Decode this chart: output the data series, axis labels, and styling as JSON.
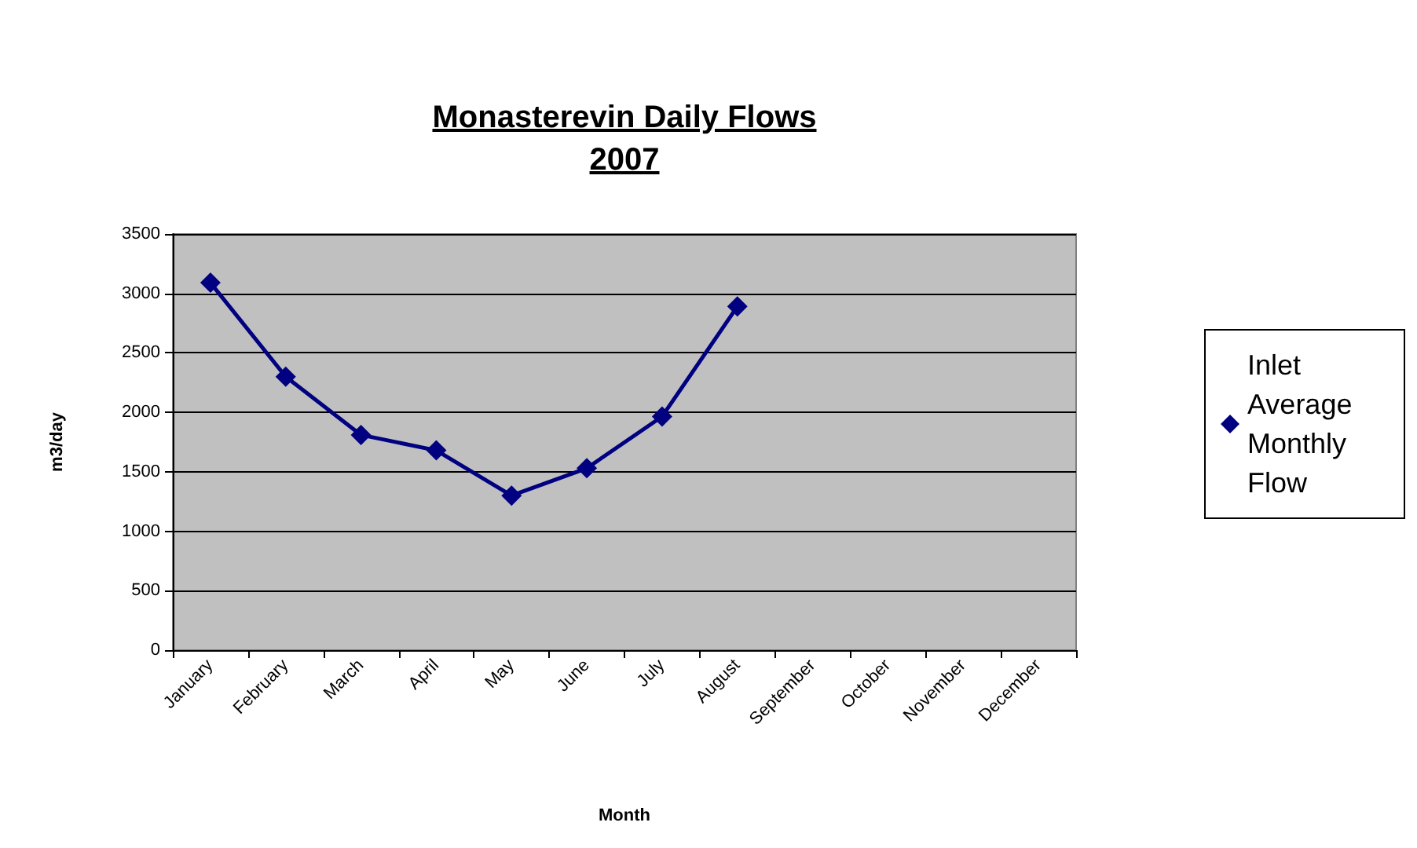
{
  "chart_data": {
    "type": "line",
    "title": "Monasterevin Daily Flows\n2007",
    "xlabel": "Month",
    "ylabel": "m3/day",
    "categories": [
      "January",
      "February",
      "March",
      "April",
      "May",
      "June",
      "July",
      "August",
      "September",
      "October",
      "November",
      "December"
    ],
    "series": [
      {
        "name": "Inlet Average Monthly Flow",
        "color": "#000080",
        "values": [
          3090,
          2300,
          1810,
          1680,
          1300,
          1530,
          1965,
          2890,
          null,
          null,
          null,
          null
        ]
      }
    ],
    "ylim": [
      0,
      3500
    ],
    "yticks": [
      0,
      500,
      1000,
      1500,
      2000,
      2500,
      3000,
      3500
    ],
    "grid": "y",
    "legend": "right",
    "marker": "diamond",
    "line_style": "solid"
  }
}
